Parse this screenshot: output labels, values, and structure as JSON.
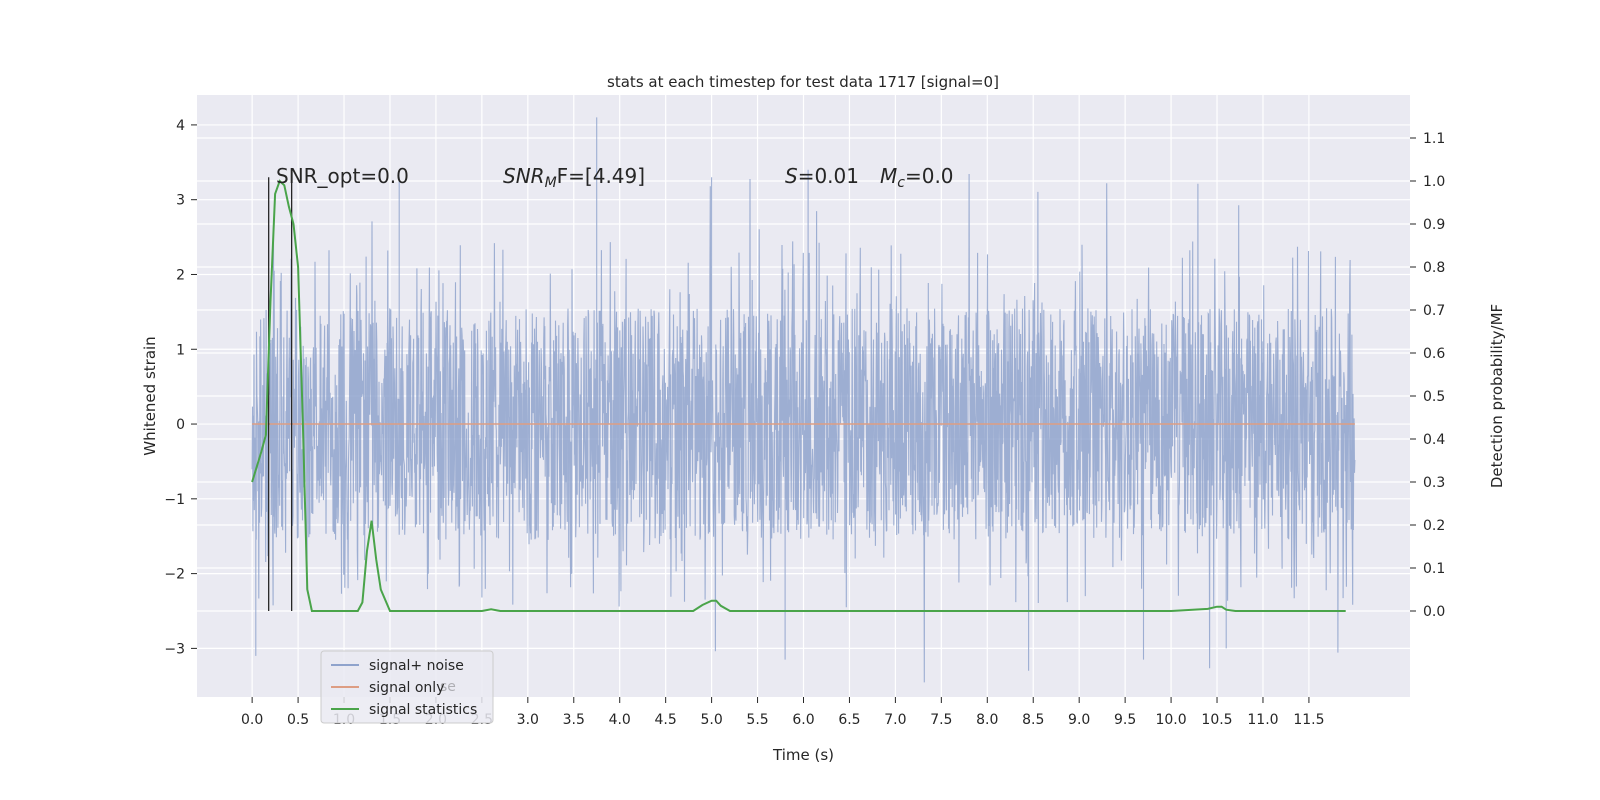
{
  "chart_data": {
    "type": "line",
    "title": "stats at each timestep for test data 1717 [signal=0]",
    "xlabel": "Time (s)",
    "ylabel_left": "Whitened strain",
    "ylabel_right": "Detection probability/MF",
    "xlim": [
      -0.6,
      12.6
    ],
    "ylim_left": [
      -3.65,
      4.4
    ],
    "ylim_right": [
      -0.2,
      1.2
    ],
    "x_ticks": [
      "0.0",
      "0.5",
      "1.0",
      "1.5",
      "2.0",
      "2.5",
      "3.0",
      "3.5",
      "4.0",
      "4.5",
      "5.0",
      "5.5",
      "6.0",
      "6.5",
      "7.0",
      "7.5",
      "8.0",
      "8.5",
      "9.0",
      "9.5",
      "10.0",
      "10.5",
      "11.0",
      "11.5"
    ],
    "y_ticks_left": [
      -3,
      -2,
      -1,
      0,
      1,
      2,
      3,
      4
    ],
    "y_ticks_right": [
      0.0,
      0.1,
      0.2,
      0.3,
      0.4,
      0.5,
      0.6,
      0.7,
      0.8,
      0.9,
      1.0,
      1.1
    ],
    "grid": true,
    "legend_placement": "lower-left",
    "annotations": {
      "snr_opt": "SNR_opt=0.0",
      "snr_mf": "SNR",
      "snr_mf_sub": "M",
      "snr_mf_rest": "F=[4.49]",
      "s_sym": "S",
      "s_val": "=0.01",
      "mc_sym": "M",
      "mc_sub": "c",
      "mc_val": "=0.0"
    },
    "series": [
      {
        "name": "signal+ noise",
        "axis": "left",
        "color": "#8fa3cc",
        "description_range": [
          0.0,
          12.0
        ],
        "envelope": {
          "typical_min": -1.6,
          "typical_max": 1.6,
          "peak_max": 4.1,
          "peak_min": -3.3
        }
      },
      {
        "name": "signal only",
        "axis": "left",
        "color": "#dd9d83",
        "x": [
          0.0,
          12.0
        ],
        "y": [
          0.0,
          0.0
        ]
      },
      {
        "name": "signal statistics",
        "axis": "left_as_right",
        "color": "#4aa44a",
        "x": [
          0.0,
          0.1,
          0.15,
          0.2,
          0.25,
          0.3,
          0.35,
          0.4,
          0.45,
          0.5,
          0.55,
          0.6,
          0.65,
          0.7,
          0.8,
          1.0,
          1.1,
          1.15,
          1.2,
          1.25,
          1.3,
          1.35,
          1.4,
          1.5,
          2.0,
          2.5,
          2.6,
          2.7,
          3.0,
          4.0,
          4.8,
          4.9,
          5.0,
          5.05,
          5.1,
          5.2,
          5.3,
          5.5,
          6.0,
          6.5,
          7.0,
          7.5,
          8.0,
          9.0,
          10.0,
          10.4,
          10.5,
          10.55,
          10.6,
          10.7,
          11.0,
          11.5,
          11.9
        ],
        "y": [
          0.3,
          0.37,
          0.41,
          0.72,
          0.97,
          1.0,
          0.99,
          0.94,
          0.9,
          0.8,
          0.45,
          0.05,
          0.0,
          0.0,
          0.0,
          0.0,
          0.0,
          0.0,
          0.02,
          0.14,
          0.21,
          0.12,
          0.05,
          0.0,
          0.0,
          0.0,
          0.004,
          0.0,
          0.0,
          0.0,
          0.0,
          0.014,
          0.024,
          0.024,
          0.012,
          0.0,
          0.0,
          0.0,
          0.0,
          0.0,
          0.0,
          0.0,
          0.0,
          0.0,
          0.0,
          0.005,
          0.01,
          0.01,
          0.003,
          0.0,
          0.0,
          0.0,
          0.0
        ]
      }
    ],
    "vertical_markers": {
      "color": "#262626",
      "x": [
        0.18,
        0.43
      ],
      "y_range": [
        -2.5,
        3.3
      ]
    },
    "legend": [
      "signal+ noise",
      "signal only",
      "signal statistics"
    ],
    "legend_ghost_text": "se"
  }
}
